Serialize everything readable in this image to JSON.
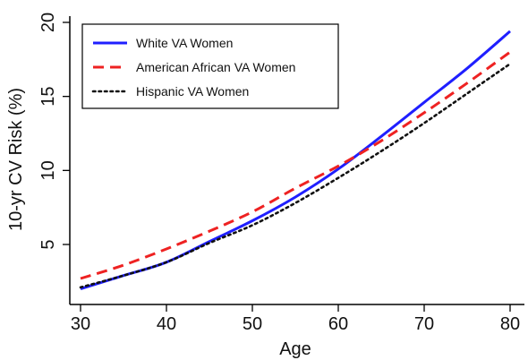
{
  "chart_data": {
    "type": "line",
    "xlabel": "Age",
    "ylabel": "10-yr CV Risk (%)",
    "xlim": [
      30,
      80
    ],
    "ylim": [
      1,
      20
    ],
    "xticks": [
      30,
      40,
      50,
      60,
      70,
      80
    ],
    "yticks": [
      5,
      10,
      15,
      20
    ],
    "grid": false,
    "legend_position": "top-left",
    "series": [
      {
        "name": "White VA Women",
        "color": "#1f1fff",
        "style": "solid",
        "x": [
          30,
          35,
          40,
          45,
          50,
          55,
          60,
          65,
          70,
          75,
          80
        ],
        "y": [
          2.0,
          2.9,
          3.8,
          5.2,
          6.6,
          8.2,
          10.1,
          12.3,
          14.6,
          16.9,
          19.4
        ]
      },
      {
        "name": "American African VA Women",
        "color": "#ee2222",
        "style": "dashed",
        "x": [
          30,
          35,
          40,
          45,
          50,
          55,
          60,
          65,
          70,
          75,
          80
        ],
        "y": [
          2.7,
          3.6,
          4.7,
          5.9,
          7.2,
          8.8,
          10.3,
          12.0,
          13.9,
          15.9,
          18.0
        ]
      },
      {
        "name": "Hispanic VA Women",
        "color": "#111111",
        "style": "dotted",
        "x": [
          30,
          35,
          40,
          45,
          50,
          55,
          60,
          65,
          70,
          75,
          80
        ],
        "y": [
          2.1,
          2.9,
          3.8,
          5.1,
          6.3,
          7.8,
          9.5,
          11.3,
          13.2,
          15.2,
          17.2
        ]
      }
    ]
  }
}
